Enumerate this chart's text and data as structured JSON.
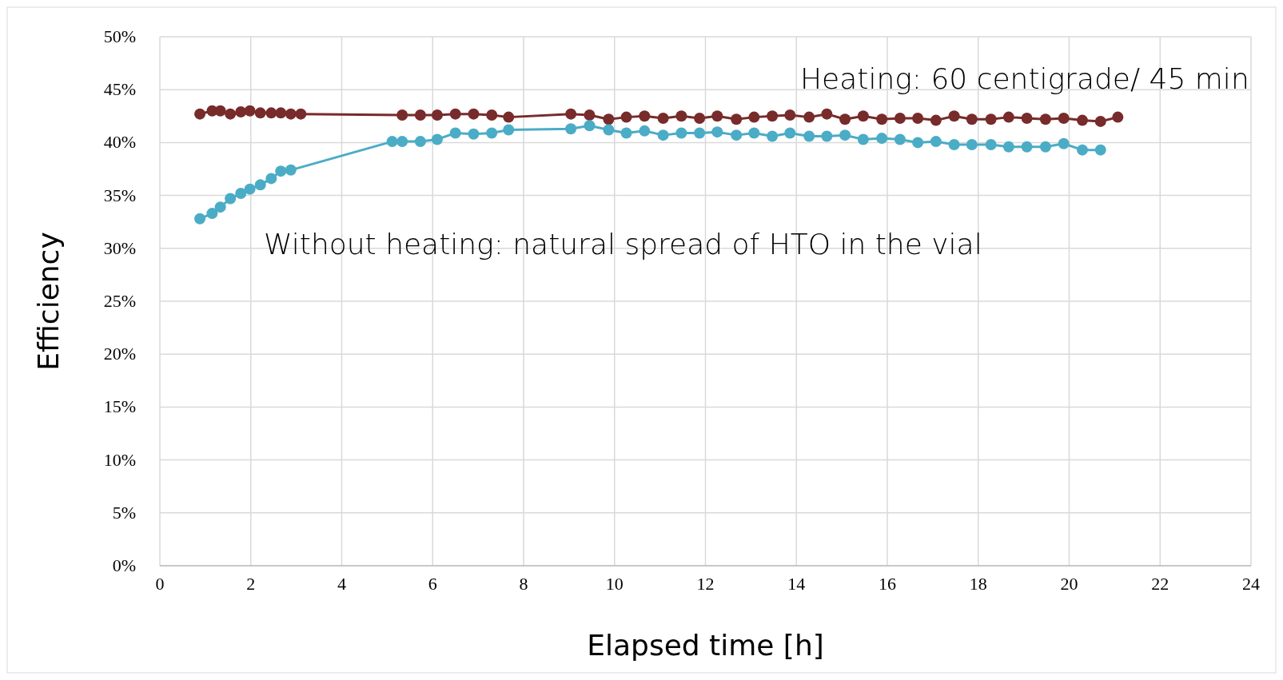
{
  "chart_data": {
    "type": "line",
    "xlabel": "Elapsed time [h]",
    "ylabel": "Efficiency",
    "xlim": [
      0,
      24
    ],
    "xticks": [
      0,
      2,
      4,
      6,
      8,
      10,
      12,
      14,
      16,
      18,
      20,
      22,
      24
    ],
    "ylim": [
      0,
      50
    ],
    "yticks": [
      {
        "value": 0,
        "label": "0%"
      },
      {
        "value": 5,
        "label": "5%"
      },
      {
        "value": 10,
        "label": "10%"
      },
      {
        "value": 15,
        "label": "15%"
      },
      {
        "value": 20,
        "label": "20%"
      },
      {
        "value": 25,
        "label": "25%"
      },
      {
        "value": 30,
        "label": "30%"
      },
      {
        "value": 35,
        "label": "35%"
      },
      {
        "value": 40,
        "label": "40%"
      },
      {
        "value": 45,
        "label": "45%"
      },
      {
        "value": 50,
        "label": "50%"
      }
    ],
    "grid": true,
    "marker": "circle",
    "line_style": "solid",
    "annotations": [
      "Heating: 60 centigrade/ 45 min",
      "Without heating: natural spread of HTO in the vial"
    ],
    "series": [
      {
        "color": "#772b2a",
        "x": [
          0.88,
          1.15,
          1.33,
          1.55,
          1.78,
          1.98,
          2.21,
          2.45,
          2.66,
          2.88,
          3.1,
          5.33,
          5.73,
          6.1,
          6.5,
          6.9,
          7.3,
          7.67,
          9.04,
          9.45,
          9.87,
          10.26,
          10.66,
          11.07,
          11.47,
          11.87,
          12.26,
          12.68,
          13.07,
          13.47,
          13.86,
          14.28,
          14.67,
          15.07,
          15.47,
          15.88,
          16.28,
          16.67,
          17.07,
          17.47,
          17.86,
          18.28,
          18.67,
          19.07,
          19.48,
          19.88,
          20.29,
          20.69,
          21.07
        ],
        "values": [
          42.7,
          43.0,
          43.0,
          42.7,
          42.9,
          43.0,
          42.8,
          42.8,
          42.8,
          42.7,
          42.7,
          42.6,
          42.6,
          42.6,
          42.7,
          42.7,
          42.6,
          42.4,
          42.7,
          42.6,
          42.2,
          42.4,
          42.5,
          42.3,
          42.5,
          42.3,
          42.5,
          42.2,
          42.4,
          42.5,
          42.6,
          42.4,
          42.7,
          42.2,
          42.5,
          42.2,
          42.3,
          42.3,
          42.1,
          42.5,
          42.2,
          42.2,
          42.4,
          42.3,
          42.2,
          42.3,
          42.1,
          42.0,
          42.4
        ]
      },
      {
        "color": "#4bacc6",
        "x": [
          0.88,
          1.15,
          1.33,
          1.55,
          1.78,
          1.98,
          2.21,
          2.45,
          2.66,
          2.88,
          5.11,
          5.33,
          5.73,
          6.1,
          6.5,
          6.9,
          7.3,
          7.67,
          9.04,
          9.45,
          9.87,
          10.26,
          10.66,
          11.07,
          11.47,
          11.87,
          12.26,
          12.68,
          13.07,
          13.47,
          13.86,
          14.28,
          14.67,
          15.07,
          15.47,
          15.88,
          16.28,
          16.67,
          17.07,
          17.47,
          17.86,
          18.28,
          18.67,
          19.07,
          19.48,
          19.88,
          20.29,
          20.69
        ],
        "values": [
          32.8,
          33.3,
          33.9,
          34.7,
          35.2,
          35.6,
          36.0,
          36.6,
          37.3,
          37.4,
          40.1,
          40.1,
          40.1,
          40.3,
          40.9,
          40.8,
          40.9,
          41.2,
          41.3,
          41.6,
          41.2,
          40.9,
          41.1,
          40.7,
          40.9,
          40.9,
          41.0,
          40.7,
          40.9,
          40.6,
          40.9,
          40.6,
          40.6,
          40.7,
          40.3,
          40.4,
          40.3,
          40.0,
          40.1,
          39.8,
          39.8,
          39.8,
          39.6,
          39.6,
          39.6,
          39.9,
          39.3,
          39.3
        ]
      }
    ]
  }
}
